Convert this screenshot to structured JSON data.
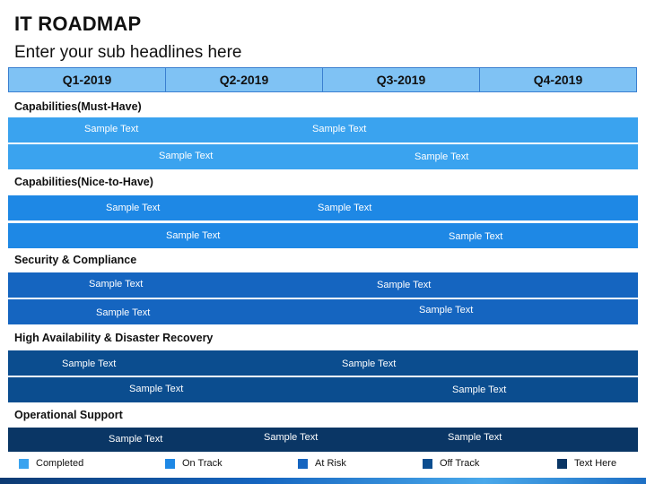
{
  "title": "IT ROADMAP",
  "subtitle": "Enter your sub headlines here",
  "quarters": [
    "Q1-2019",
    "Q2-2019",
    "Q3-2019",
    "Q4-2019"
  ],
  "sections": [
    {
      "title": "Capabilities(Must-Have)",
      "rows": [
        [
          "Sample Text",
          "Sample Text"
        ],
        [
          "Sample Text",
          "Sample Text"
        ]
      ]
    },
    {
      "title": "Capabilities(Nice-to-Have)",
      "rows": [
        [
          "Sample Text",
          "Sample Text"
        ],
        [
          "Sample Text",
          "Sample Text"
        ]
      ]
    },
    {
      "title": "Security & Compliance",
      "rows": [
        [
          "Sample Text",
          "Sample Text"
        ],
        [
          "Sample Text",
          "Sample Text"
        ]
      ]
    },
    {
      "title": "High Availability & Disaster Recovery",
      "rows": [
        [
          "Sample Text",
          "Sample Text"
        ],
        [
          "Sample Text",
          "Sample Text"
        ]
      ]
    },
    {
      "title": "Operational Support",
      "rows": [
        [
          "Sample Text",
          "Sample Text",
          "Sample Text"
        ]
      ]
    }
  ],
  "legend": [
    {
      "label": "Completed",
      "color": "#3aa3ef"
    },
    {
      "label": "On Track",
      "color": "#1e88e5"
    },
    {
      "label": "At Risk",
      "color": "#1565c0"
    },
    {
      "label": "Off Track",
      "color": "#0b4d8f"
    },
    {
      "label": "Text Here",
      "color": "#0a3665"
    }
  ],
  "colors": {
    "capabilities_must_have": "#3aa3ef",
    "capabilities_nice_to_have": "#1e88e5",
    "security_compliance": "#1565c0",
    "high_availability": "#0b4d8f",
    "operational_support": "#0a3665",
    "quarter_header": "#7fc2f4"
  }
}
